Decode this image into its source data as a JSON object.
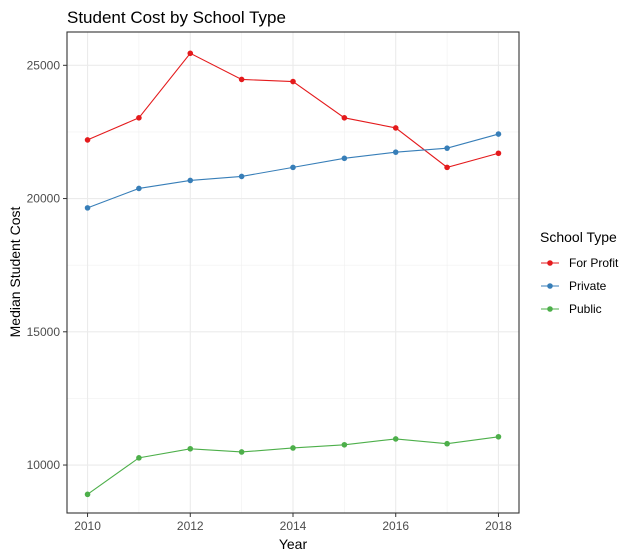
{
  "chart_data": {
    "type": "line",
    "title": "Student Cost by School Type",
    "xlabel": "Year",
    "ylabel": "Median Student Cost",
    "x": [
      2010,
      2011,
      2012,
      2013,
      2014,
      2015,
      2016,
      2017,
      2018
    ],
    "xticks": [
      2010,
      2012,
      2014,
      2016,
      2018
    ],
    "yticks": [
      10000,
      15000,
      20000,
      25000
    ],
    "xlim": [
      2009.6,
      2018.4
    ],
    "ylim": [
      8200,
      26250
    ],
    "grid": true,
    "legend": {
      "title": "School Type",
      "placement": "right"
    },
    "series": [
      {
        "name": "For Profit",
        "color": "#E41A1C",
        "values": [
          22200,
          23030,
          25450,
          24470,
          24390,
          23030,
          22650,
          21170,
          21700
        ]
      },
      {
        "name": "Private",
        "color": "#377EB8",
        "values": [
          19650,
          20380,
          20680,
          20830,
          21170,
          21510,
          21740,
          21890,
          22420
        ]
      },
      {
        "name": "Public",
        "color": "#4DAF4A",
        "values": [
          8900,
          10270,
          10610,
          10490,
          10640,
          10760,
          10980,
          10800,
          11060
        ]
      }
    ]
  }
}
